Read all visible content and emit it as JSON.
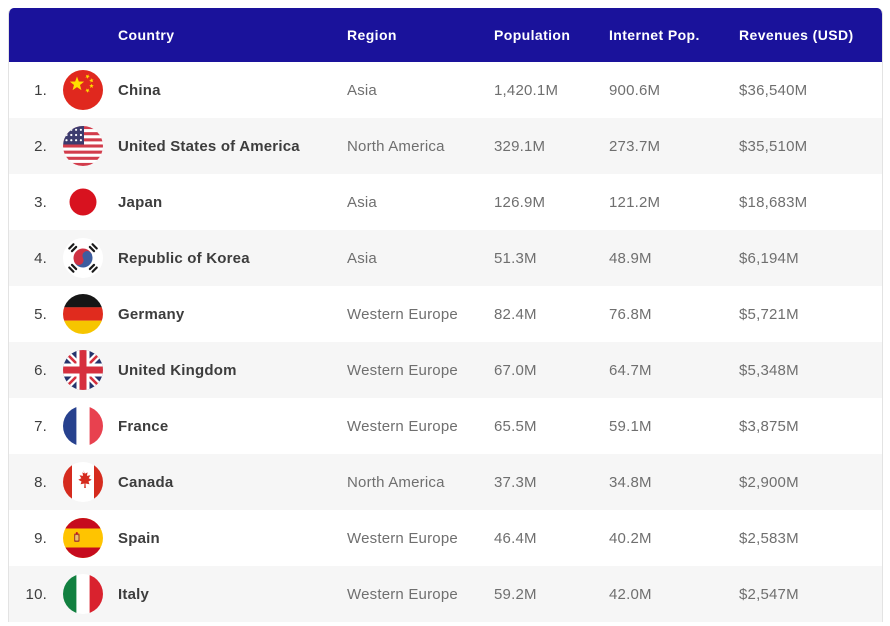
{
  "chart_data": {
    "type": "table",
    "columns": [
      "Country",
      "Region",
      "Population",
      "Internet Pop.",
      "Revenues (USD)"
    ],
    "rows": [
      {
        "rank": "1.",
        "flag": "china-flag-icon",
        "country": "China",
        "region": "Asia",
        "population": "1,420.1M",
        "internet_pop": "900.6M",
        "revenues": "$36,540M"
      },
      {
        "rank": "2.",
        "flag": "usa-flag-icon",
        "country": "United States of America",
        "region": "North America",
        "population": "329.1M",
        "internet_pop": "273.7M",
        "revenues": "$35,510M"
      },
      {
        "rank": "3.",
        "flag": "japan-flag-icon",
        "country": "Japan",
        "region": "Asia",
        "population": "126.9M",
        "internet_pop": "121.2M",
        "revenues": "$18,683M"
      },
      {
        "rank": "4.",
        "flag": "south-korea-flag-icon",
        "country": "Republic of Korea",
        "region": "Asia",
        "population": "51.3M",
        "internet_pop": "48.9M",
        "revenues": "$6,194M"
      },
      {
        "rank": "5.",
        "flag": "germany-flag-icon",
        "country": "Germany",
        "region": "Western Europe",
        "population": "82.4M",
        "internet_pop": "76.8M",
        "revenues": "$5,721M"
      },
      {
        "rank": "6.",
        "flag": "uk-flag-icon",
        "country": "United Kingdom",
        "region": "Western Europe",
        "population": "67.0M",
        "internet_pop": "64.7M",
        "revenues": "$5,348M"
      },
      {
        "rank": "7.",
        "flag": "france-flag-icon",
        "country": "France",
        "region": "Western Europe",
        "population": "65.5M",
        "internet_pop": "59.1M",
        "revenues": "$3,875M"
      },
      {
        "rank": "8.",
        "flag": "canada-flag-icon",
        "country": "Canada",
        "region": "North America",
        "population": "37.3M",
        "internet_pop": "34.8M",
        "revenues": "$2,900M"
      },
      {
        "rank": "9.",
        "flag": "spain-flag-icon",
        "country": "Spain",
        "region": "Western Europe",
        "population": "46.4M",
        "internet_pop": "40.2M",
        "revenues": "$2,583M"
      },
      {
        "rank": "10.",
        "flag": "italy-flag-icon",
        "country": "Italy",
        "region": "Western Europe",
        "population": "59.2M",
        "internet_pop": "42.0M",
        "revenues": "$2,547M"
      }
    ],
    "layout": {
      "grid": "off",
      "header_position": "top",
      "row_striping": "alternate"
    }
  },
  "colors": {
    "header_bg": "#1a129b",
    "header_text": "#ffffff",
    "row_alt_bg": "#f6f6f6",
    "country_text": "#3d3d3d",
    "muted_text": "#6f6f6f"
  }
}
